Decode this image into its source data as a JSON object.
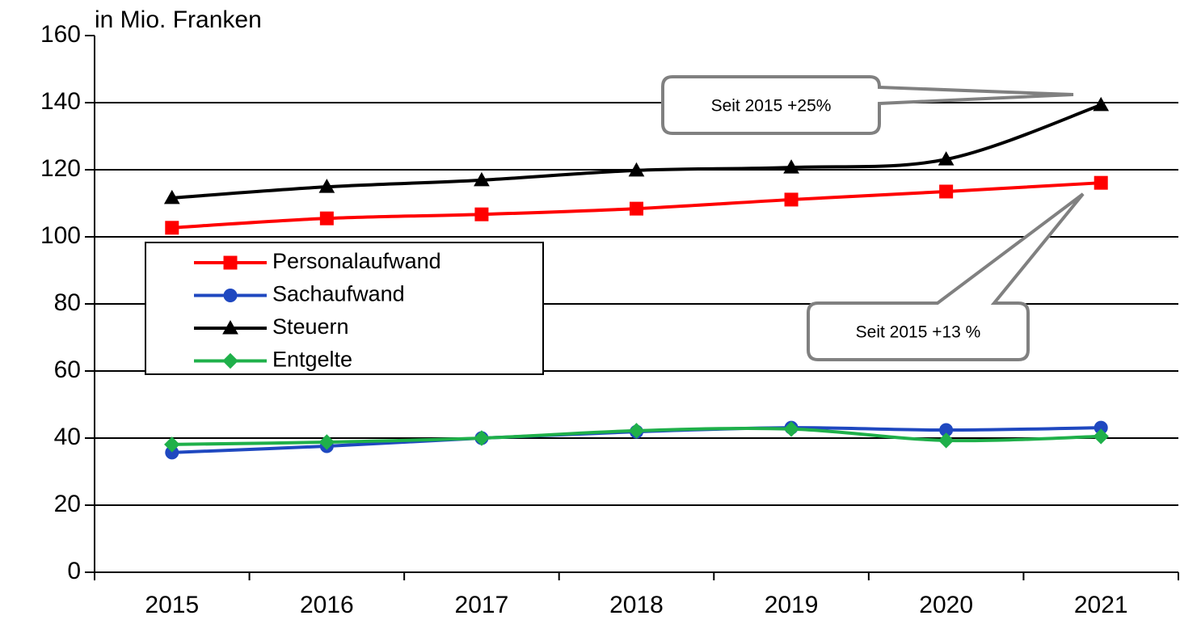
{
  "chart_data": {
    "type": "line",
    "axis_label": "in Mio. Franken",
    "categories": [
      "2015",
      "2016",
      "2017",
      "2018",
      "2019",
      "2020",
      "2021"
    ],
    "series": [
      {
        "name": "Personalaufwand",
        "color": "#ff0000",
        "marker": "square",
        "values": [
          102.7,
          105.5,
          106.7,
          108.4,
          111.1,
          113.5,
          116.1
        ]
      },
      {
        "name": "Sachaufwand",
        "color": "#1f48c0",
        "marker": "circle",
        "values": [
          35.7,
          37.6,
          40.0,
          41.9,
          43.1,
          42.4,
          43.1
        ]
      },
      {
        "name": "Steuern",
        "color": "#000000",
        "marker": "triangle",
        "values": [
          111.6,
          114.9,
          116.9,
          119.8,
          120.7,
          123.1,
          139.3
        ]
      },
      {
        "name": "Entgelte",
        "color": "#1fb04a",
        "marker": "diamond",
        "values": [
          38.1,
          38.8,
          40.0,
          42.2,
          42.7,
          39.3,
          40.5
        ]
      }
    ],
    "ylim": [
      0,
      160
    ],
    "yticks": [
      0,
      20,
      40,
      60,
      80,
      100,
      120,
      140,
      160
    ],
    "grid": true,
    "legend": "left",
    "annotations": [
      "Seit 2015 +25%",
      "Seit 2015 +13 %"
    ]
  }
}
